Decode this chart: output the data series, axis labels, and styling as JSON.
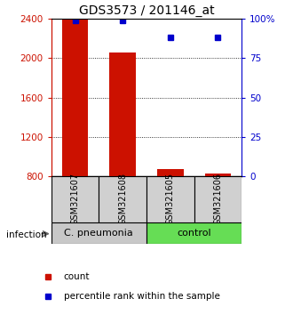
{
  "title": "GDS3573 / 201146_at",
  "samples": [
    "GSM321607",
    "GSM321608",
    "GSM321605",
    "GSM321606"
  ],
  "bar_values": [
    2390,
    2060,
    870,
    830
  ],
  "percentile_values": [
    99,
    99,
    88,
    88
  ],
  "ylim_left": [
    800,
    2400
  ],
  "ylim_right": [
    0,
    100
  ],
  "yticks_left": [
    800,
    1200,
    1600,
    2000,
    2400
  ],
  "yticks_right": [
    0,
    25,
    50,
    75,
    100
  ],
  "ytick_labels_right": [
    "0",
    "25",
    "50",
    "75",
    "100%"
  ],
  "bar_color": "#cc1100",
  "percentile_color": "#0000cc",
  "bar_width": 0.55,
  "group_cpneumonia_color": "#c8c8c8",
  "group_control_color": "#66dd55",
  "sample_box_color": "#d0d0d0",
  "infection_label": "infection",
  "legend_count_label": "count",
  "legend_percentile_label": "percentile rank within the sample",
  "title_fontsize": 10,
  "tick_fontsize": 7.5,
  "sample_label_fontsize": 7,
  "group_label_fontsize": 8
}
